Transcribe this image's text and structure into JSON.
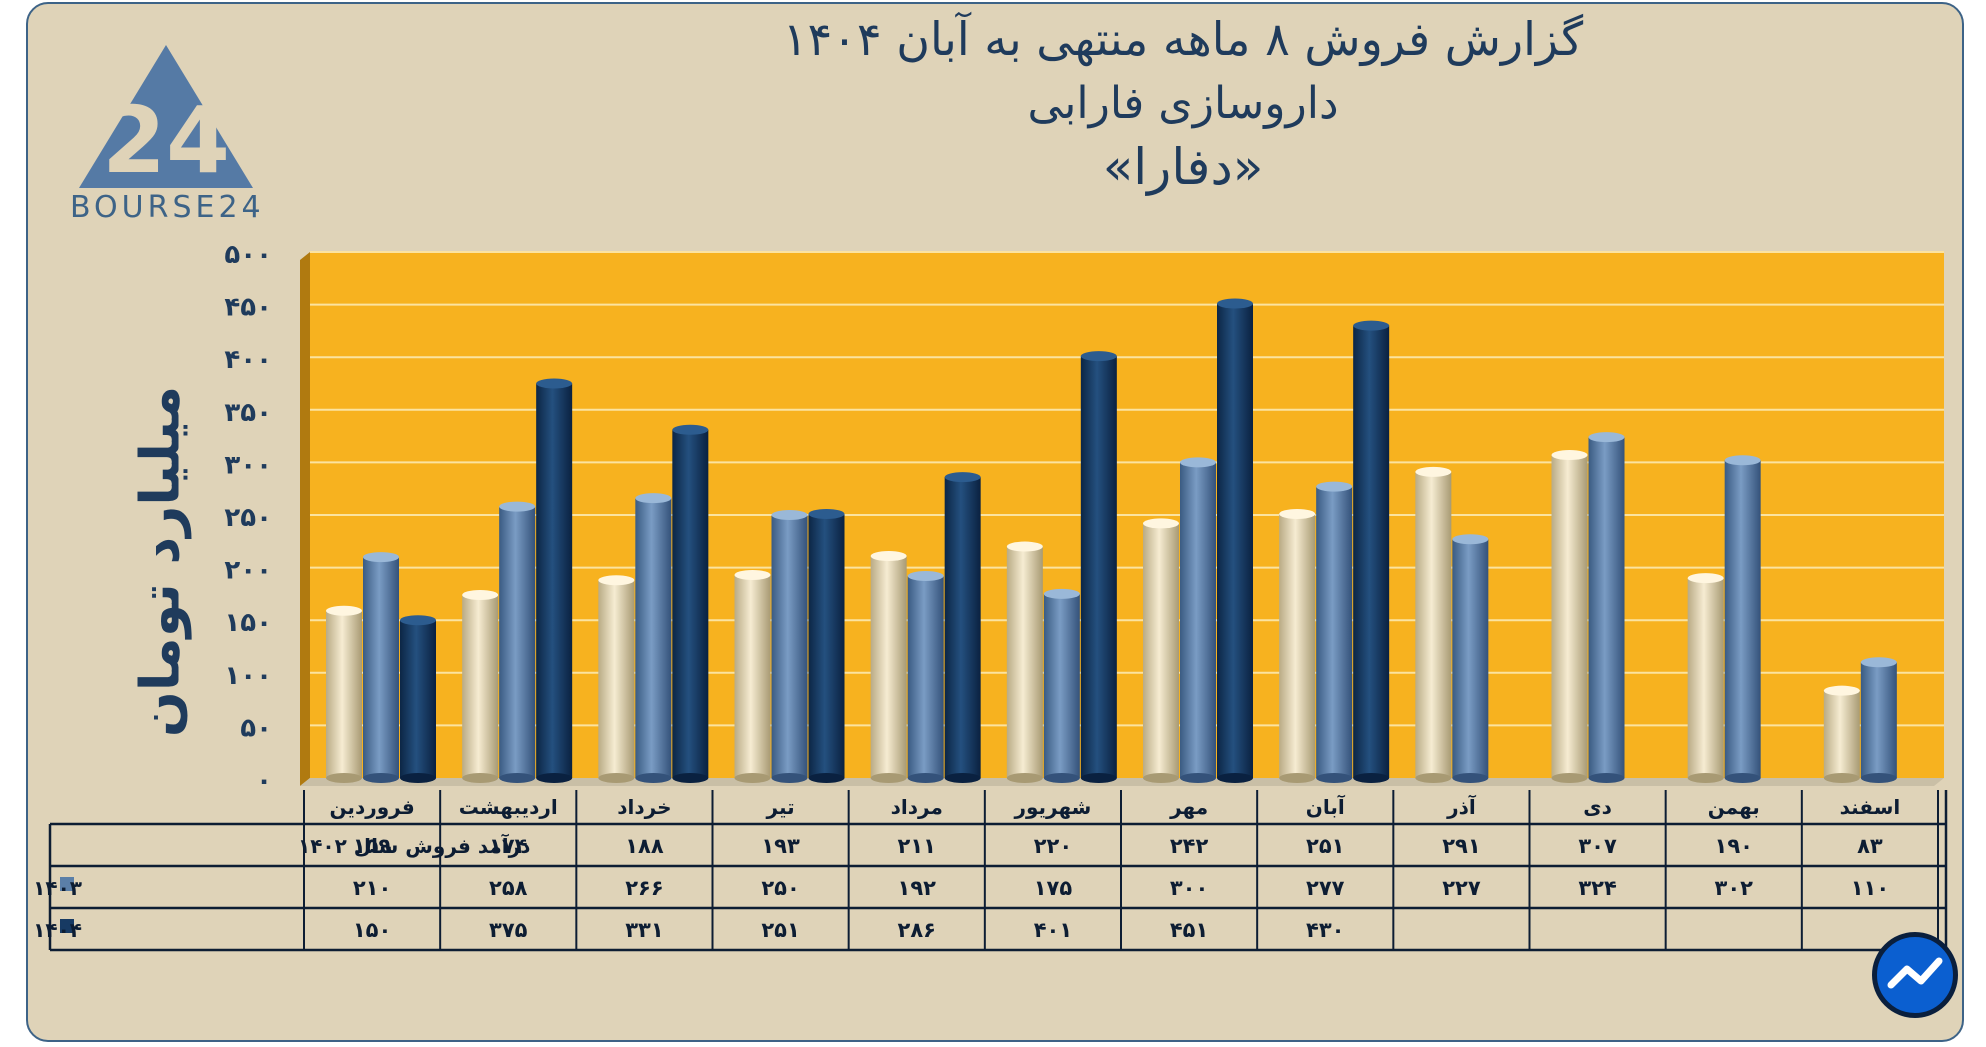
{
  "title_line1": "گزارش  فروش ۸ ماهه منتهی به آبان ۱۴۰۴",
  "title_line2": "داروسازی فارابی",
  "title_line3": "«دفارا»",
  "logo_text": "BOURSE24",
  "logo_glyph": "24",
  "ylabel": "میلیارد تومان",
  "colors": {
    "plot_bg": "#f7b21f",
    "frame_bg": "#dfd3b8",
    "series_1402": "#ede0bf",
    "series_1403": "#5b7fa8",
    "series_1404": "#173a63",
    "title": "#1f3b5c"
  },
  "chart_data": {
    "type": "bar",
    "ylim": [
      0,
      500
    ],
    "yticks": [
      "۰",
      "۵۰",
      "۱۰۰",
      "۱۵۰",
      "۲۰۰",
      "۲۵۰",
      "۳۰۰",
      "۳۵۰",
      "۴۰۰",
      "۴۵۰",
      "۵۰۰"
    ],
    "ytick_values": [
      0,
      50,
      100,
      150,
      200,
      250,
      300,
      350,
      400,
      450,
      500
    ],
    "ylabel": "میلیارد تومان",
    "grid": true,
    "categories": [
      "فروردین",
      "اردیبهشت",
      "خرداد",
      "تیر",
      "مرداد",
      "شهریور",
      "مهر",
      "آبان",
      "آذر",
      "دی",
      "بهمن",
      "اسفند"
    ],
    "series": [
      {
        "name": "درآمد فروش سال ۱۴۰۲",
        "values": [
          159,
          174,
          188,
          193,
          211,
          220,
          242,
          251,
          291,
          307,
          190,
          83
        ],
        "labels": [
          "۱۵۹",
          "۱۷۴",
          "۱۸۸",
          "۱۹۳",
          "۲۱۱",
          "۲۲۰",
          "۲۴۲",
          "۲۵۱",
          "۲۹۱",
          "۳۰۷",
          "۱۹۰",
          "۸۳"
        ]
      },
      {
        "name": "۱۴۰۳",
        "values": [
          210,
          258,
          266,
          250,
          192,
          175,
          300,
          277,
          227,
          324,
          302,
          110
        ],
        "labels": [
          "۲۱۰",
          "۲۵۸",
          "۲۶۶",
          "۲۵۰",
          "۱۹۲",
          "۱۷۵",
          "۳۰۰",
          "۲۷۷",
          "۲۲۷",
          "۳۲۴",
          "۳۰۲",
          "۱۱۰"
        ]
      },
      {
        "name": "۱۴۰۴",
        "values": [
          150,
          375,
          331,
          251,
          286,
          401,
          451,
          430,
          null,
          null,
          null,
          null
        ],
        "labels": [
          "۱۵۰",
          "۳۷۵",
          "۳۳۱",
          "۲۵۱",
          "۲۸۶",
          "۴۰۱",
          "۴۵۱",
          "۴۳۰",
          "",
          "",
          "",
          ""
        ]
      }
    ]
  }
}
